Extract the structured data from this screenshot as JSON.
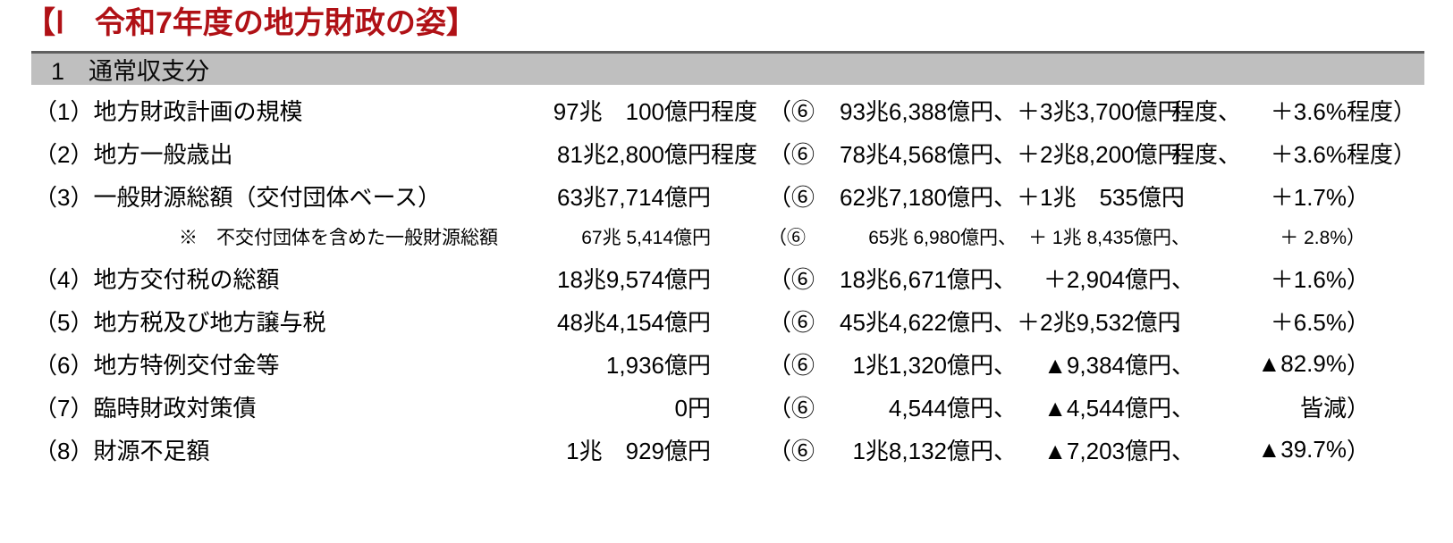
{
  "title": "【Ⅰ　令和7年度の地方財政の姿】",
  "title_color": "#b01116",
  "section": {
    "label": "1　通常収支分",
    "bg_color": "#bfbfbf"
  },
  "rows": [
    {
      "type": "main",
      "label": "（1）地方財政計画の規模",
      "amount": "97兆　100億円",
      "amount_suffix": "程度",
      "open": "（⑥",
      "prev": "93兆6,388億円、",
      "diff": "＋3兆3,700億円",
      "diff_suffix": "程度、",
      "pct": "＋3.6%",
      "pct_suffix": "程度）"
    },
    {
      "type": "main",
      "label": "（2）地方一般歳出",
      "amount": "81兆2,800億円",
      "amount_suffix": "程度",
      "open": "（⑥",
      "prev": "78兆4,568億円、",
      "diff": "＋2兆8,200億円",
      "diff_suffix": "程度、",
      "pct": "＋3.6%",
      "pct_suffix": "程度）"
    },
    {
      "type": "main",
      "label": "（3）一般財源総額（交付団体ベース）",
      "amount": "63兆7,714億円",
      "amount_suffix": "",
      "open": "（⑥",
      "prev": "62兆7,180億円、",
      "diff": "＋1兆　535億円",
      "diff_suffix": "、",
      "pct": "＋1.7%",
      "pct_suffix": "）"
    },
    {
      "type": "note",
      "label": "※　不交付団体を含めた一般財源総額",
      "amount": "67兆 5,414億円",
      "amount_suffix": "",
      "open": "（⑥",
      "prev": "65兆 6,980億円、",
      "diff": "＋ 1兆 8,435億円",
      "diff_suffix": "、",
      "pct": "＋ 2.8%",
      "pct_suffix": "）"
    },
    {
      "type": "main",
      "label": "（4）地方交付税の総額",
      "amount": "18兆9,574億円",
      "amount_suffix": "",
      "open": "（⑥",
      "prev": "18兆6,671億円、",
      "diff": "＋2,904億円",
      "diff_suffix": "、",
      "pct": "＋1.6%",
      "pct_suffix": "）"
    },
    {
      "type": "main",
      "label": "（5）地方税及び地方譲与税",
      "amount": "48兆4,154億円",
      "amount_suffix": "",
      "open": "（⑥",
      "prev": "45兆4,622億円、",
      "diff": "＋2兆9,532億円",
      "diff_suffix": "、",
      "pct": "＋6.5%",
      "pct_suffix": "）"
    },
    {
      "type": "main",
      "label": "（6）地方特例交付金等",
      "amount": "1,936億円",
      "amount_suffix": "",
      "open": "（⑥",
      "prev": "1兆1,320億円、",
      "diff": "▲9,384億円",
      "diff_suffix": "、",
      "pct": "▲82.9%",
      "pct_suffix": "）"
    },
    {
      "type": "main",
      "label": "（7）臨時財政対策債",
      "amount": "0円",
      "amount_suffix": "",
      "open": "（⑥",
      "prev": "4,544億円、",
      "diff": "▲4,544億円",
      "diff_suffix": "、",
      "pct": "皆減",
      "pct_suffix": "）"
    },
    {
      "type": "main",
      "label": "（8）財源不足額",
      "amount": "1兆　929億円",
      "amount_suffix": "",
      "open": "（⑥",
      "prev": "1兆8,132億円、",
      "diff": "▲7,203億円",
      "diff_suffix": "、",
      "pct": "▲39.7%",
      "pct_suffix": "）"
    }
  ]
}
